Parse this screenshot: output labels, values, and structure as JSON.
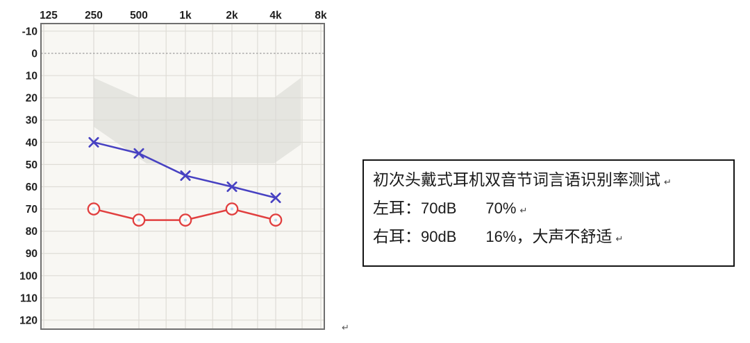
{
  "accent_colors": {
    "left_series_blue": "#4741c2",
    "right_series_red": "#e13f3f",
    "speech_area_gray": "#d9d8d4",
    "plot_background": "#f8f7f3",
    "grid_line": "#dedcd6",
    "plot_border": "#6f6f6f",
    "axis_text": "#1f1f1f"
  },
  "chart_data": {
    "type": "line",
    "title": "",
    "xlabel": "",
    "ylabel": "",
    "x_axis_position": "top",
    "y_axis_inverted_db": true,
    "x_tick_labels": [
      "125",
      "250",
      "500",
      "1k",
      "2k",
      "4k",
      "8k"
    ],
    "x_frequencies": [
      125,
      250,
      500,
      1000,
      2000,
      4000,
      8000
    ],
    "minor_frequencies": [
      750,
      1500,
      3000,
      6000
    ],
    "y_ticks": [
      -10,
      0,
      10,
      20,
      30,
      40,
      50,
      60,
      70,
      80,
      90,
      100,
      110,
      120
    ],
    "ylim": [
      -15,
      125
    ],
    "zero_line_db": 0,
    "grid": true,
    "legend_position": "none",
    "series": [
      {
        "name": "left-ear-headphone-threshold",
        "marker": "x",
        "color": "#4741c2",
        "x": [
          250,
          500,
          1000,
          2000,
          4000
        ],
        "values": [
          40,
          45,
          55,
          60,
          65
        ]
      },
      {
        "name": "right-ear-headphone-threshold",
        "marker": "circle",
        "color": "#e13f3f",
        "x": [
          250,
          500,
          1000,
          2000,
          4000
        ],
        "values": [
          70,
          75,
          75,
          70,
          75
        ]
      }
    ],
    "speech_area": {
      "color": "#d9d8d4",
      "opacity": 0.6,
      "points_freq_db": [
        [
          250,
          11
        ],
        [
          500,
          20
        ],
        [
          3900,
          20
        ],
        [
          5900,
          11
        ],
        [
          5900,
          41
        ],
        [
          3900,
          49.5
        ],
        [
          560,
          49.5
        ],
        [
          250,
          33
        ]
      ]
    }
  },
  "note": {
    "title": "初次头戴式耳机双音节词言语识别率测试",
    "return_mark": "↵",
    "lines": [
      {
        "label": "左耳：",
        "value": "70dB",
        "pct": "70%",
        "comma": "",
        "suffix": ""
      },
      {
        "label": "右耳：",
        "value": "90dB",
        "pct": "16%",
        "comma": "，",
        "suffix": "大声不舒适"
      }
    ]
  },
  "stray_return_mark": "↵"
}
